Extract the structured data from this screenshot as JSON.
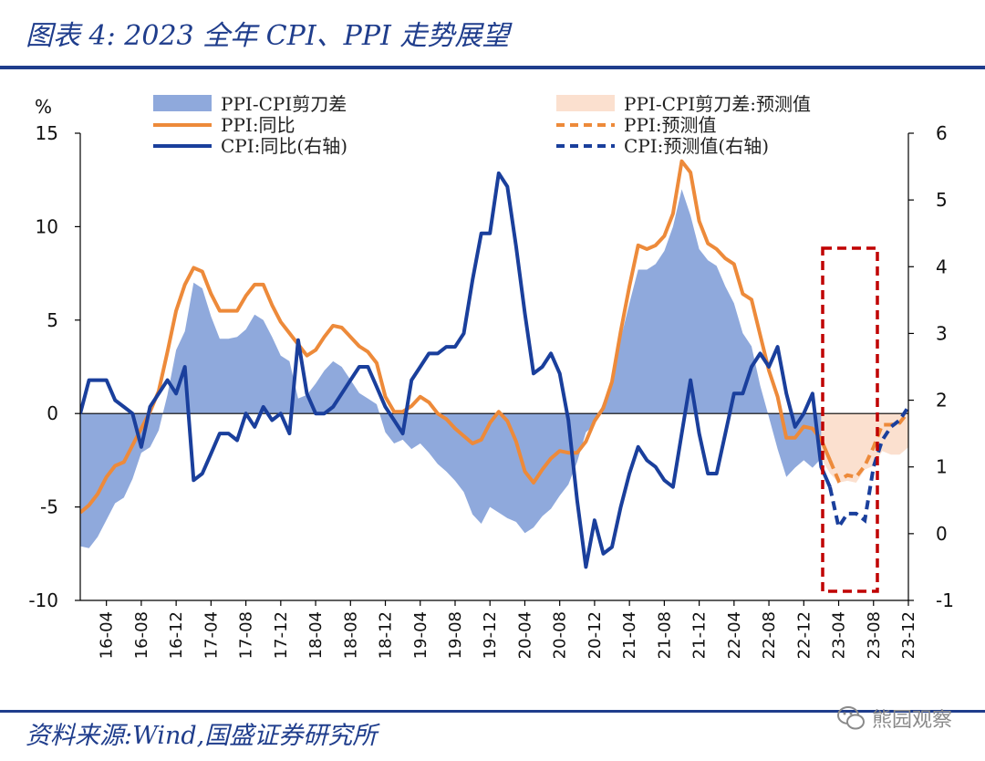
{
  "header": {
    "title": "图表 4:  2023 全年 CPI、PPI 走势展望"
  },
  "footer": {
    "source": "资料来源:Wind,国盛证券研究所",
    "watermark": "熊园观察"
  },
  "colors": {
    "brand": "#1f3d8c",
    "spread_fill": "#8fa9dc",
    "forecast_fill": "#fbe0cf",
    "ppi_line": "#ed8a3a",
    "cpi_line": "#1a3f9c",
    "forecast_box": "#c00000"
  },
  "chart_data": {
    "type": "line",
    "unit_label": "%",
    "y_left": {
      "min": -10,
      "max": 15,
      "ticks": [
        -10,
        -5,
        0,
        5,
        10,
        15
      ]
    },
    "y_right": {
      "min": -1,
      "max": 6,
      "ticks": [
        -1,
        0,
        1,
        2,
        3,
        4,
        5,
        6
      ]
    },
    "x_ticks": [
      "16-04",
      "16-08",
      "16-12",
      "17-04",
      "17-08",
      "17-12",
      "18-04",
      "18-08",
      "18-12",
      "19-04",
      "19-08",
      "19-12",
      "20-04",
      "20-08",
      "20-12",
      "21-04",
      "21-08",
      "21-12",
      "22-04",
      "22-08",
      "22-12",
      "23-04",
      "23-08",
      "23-12"
    ],
    "legend": [
      {
        "label": "PPI-CPI剪刀差",
        "kind": "area",
        "series": "spread"
      },
      {
        "label": "PPI-CPI剪刀差:预测值",
        "kind": "area",
        "series": "spread_forecast"
      },
      {
        "label": "PPI:同比",
        "kind": "line",
        "series": "ppi"
      },
      {
        "label": "PPI:预测值",
        "kind": "dash",
        "series": "ppi_forecast"
      },
      {
        "label": "CPI:同比(右轴)",
        "kind": "line",
        "series": "cpi"
      },
      {
        "label": "CPI:预测值(右轴)",
        "kind": "dash",
        "series": "cpi_forecast"
      }
    ],
    "start_month": "16-01",
    "series": {
      "ppi": [
        -5.3,
        -4.9,
        -4.3,
        -3.4,
        -2.8,
        -2.6,
        -1.7,
        -0.8,
        0.1,
        1.2,
        3.3,
        5.5,
        6.9,
        7.8,
        7.6,
        6.4,
        5.5,
        5.5,
        5.5,
        6.3,
        6.9,
        6.9,
        5.8,
        4.9,
        4.3,
        3.7,
        3.1,
        3.4,
        4.1,
        4.7,
        4.6,
        4.1,
        3.6,
        3.3,
        2.7,
        0.9,
        0.1,
        0.1,
        0.4,
        0.9,
        0.6,
        0.0,
        -0.3,
        -0.8,
        -1.2,
        -1.6,
        -1.4,
        -0.5,
        0.1,
        -0.4,
        -1.5,
        -3.1,
        -3.7,
        -3.0,
        -2.4,
        -2.0,
        -2.1,
        -2.1,
        -1.5,
        -0.4,
        0.3,
        1.7,
        4.4,
        6.8,
        9.0,
        8.8,
        9.0,
        9.5,
        10.7,
        13.5,
        12.9,
        10.3,
        9.1,
        8.8,
        8.3,
        8.0,
        6.4,
        6.1,
        4.2,
        2.3,
        0.9,
        -1.3,
        -1.3,
        -0.7,
        -0.8,
        -1.4,
        -2.5,
        -3.6,
        -3.3,
        -3.4,
        -2.8,
        -1.8,
        -0.6,
        -0.6,
        -0.5,
        0.1
      ],
      "cpi": [
        1.8,
        2.3,
        2.3,
        2.3,
        2.0,
        1.9,
        1.8,
        1.3,
        1.9,
        2.1,
        2.3,
        2.1,
        2.5,
        0.8,
        0.9,
        1.2,
        1.5,
        1.5,
        1.4,
        1.8,
        1.6,
        1.9,
        1.7,
        1.8,
        1.5,
        2.9,
        2.1,
        1.8,
        1.8,
        1.9,
        2.1,
        2.3,
        2.5,
        2.5,
        2.2,
        1.9,
        1.7,
        1.5,
        2.3,
        2.5,
        2.7,
        2.7,
        2.8,
        2.8,
        3.0,
        3.8,
        4.5,
        4.5,
        5.4,
        5.2,
        4.3,
        3.3,
        2.4,
        2.5,
        2.7,
        2.4,
        1.7,
        0.5,
        -0.5,
        0.2,
        -0.3,
        -0.2,
        0.4,
        0.9,
        1.3,
        1.1,
        1.0,
        0.8,
        0.7,
        1.5,
        2.3,
        1.5,
        0.9,
        0.9,
        1.5,
        2.1,
        2.1,
        2.5,
        2.7,
        2.5,
        2.8,
        2.1,
        1.6,
        1.8,
        2.1,
        1.0,
        0.7,
        0.1,
        0.3,
        0.3,
        0.2,
        1.0,
        1.4,
        1.6,
        1.7,
        1.9
      ]
    }
  }
}
